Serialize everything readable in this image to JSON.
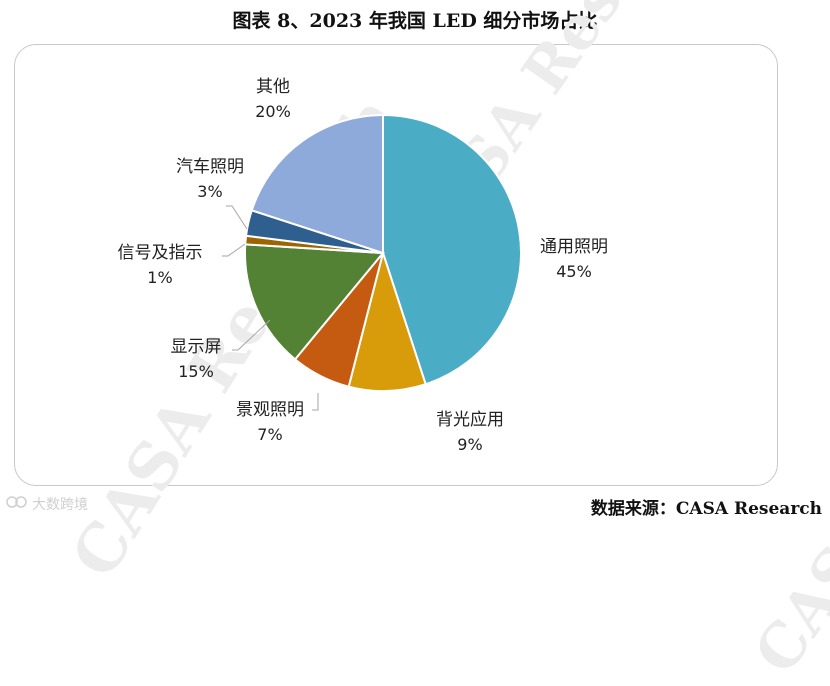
{
  "title": "图表 8、2023 年我国 LED 细分市场占比",
  "source": "数据来源：CASA Research",
  "watermark": "CASA Research",
  "brand": "大数跨境",
  "chart_data": {
    "type": "pie",
    "title": "图表 8、2023 年我国 LED 细分市场占比",
    "start_angle_deg": 90,
    "direction": "clockwise",
    "slices": [
      {
        "label": "通用照明",
        "pct_text": "45%",
        "value": 45,
        "color": "#4bacc6"
      },
      {
        "label": "背光应用",
        "pct_text": "9%",
        "value": 9,
        "color": "#d89b0a"
      },
      {
        "label": "景观照明",
        "pct_text": "7%",
        "value": 7,
        "color": "#c55a11"
      },
      {
        "label": "显示屏",
        "pct_text": "15%",
        "value": 15,
        "color": "#548235"
      },
      {
        "label": "信号及指示",
        "pct_text": "1%",
        "value": 1,
        "color": "#9c6500"
      },
      {
        "label": "汽车照明",
        "pct_text": "3%",
        "value": 3,
        "color": "#2f5f8f"
      },
      {
        "label": "其他",
        "pct_text": "20%",
        "value": 20,
        "color": "#8eaadb"
      }
    ]
  }
}
